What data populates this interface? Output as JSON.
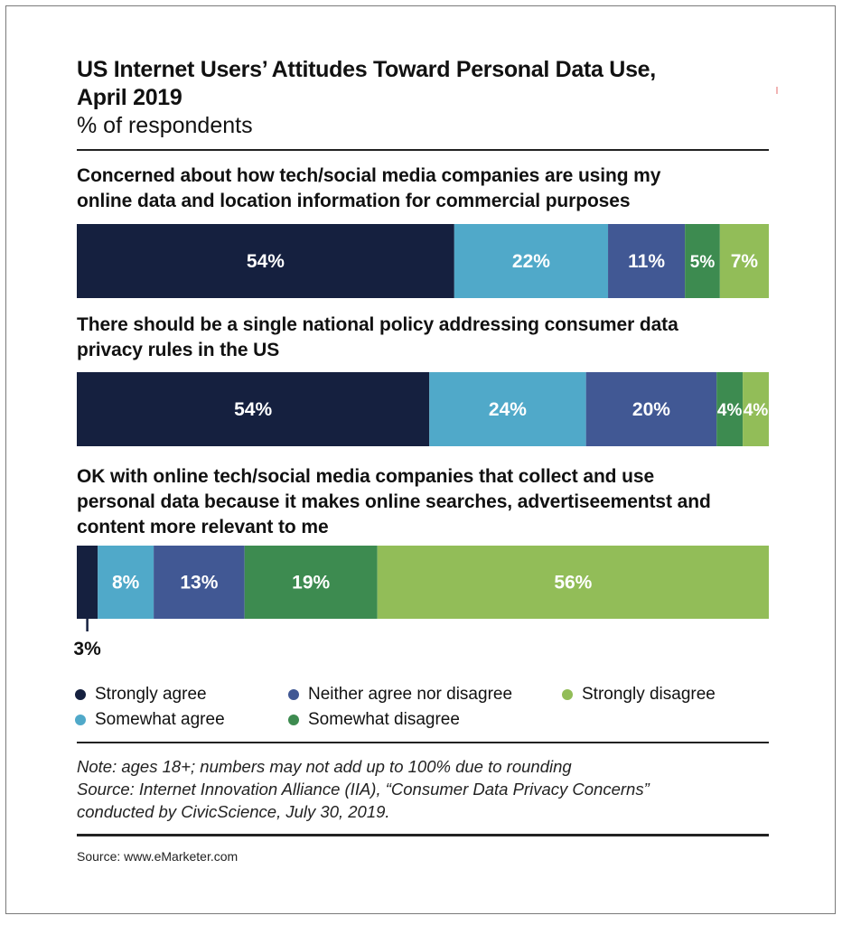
{
  "chart_data": {
    "type": "bar",
    "orientation": "horizontal-stacked",
    "title": "US Internet Users’ Attitudes Toward Personal Data Use, April 2019",
    "title_line1": "US Internet Users’ Attitudes Toward Personal Data Use,",
    "title_line2": "April 2019",
    "subtitle": "% of respondents",
    "xlabel": "",
    "ylabel": "",
    "grid": false,
    "legend_position": "bottom",
    "unit": "%",
    "series": [
      {
        "name": "Strongly agree",
        "color": "#15203f"
      },
      {
        "name": "Somewhat agree",
        "color": "#50a9c9"
      },
      {
        "name": "Neither agree nor disagree",
        "color": "#415894"
      },
      {
        "name": "Somewhat disagree",
        "color": "#3d8b50"
      },
      {
        "name": "Strongly disagree",
        "color": "#92bd58"
      }
    ],
    "categories": [
      {
        "label": "Concerned about how tech/social media companies are using my online data and location information for commercial purposes",
        "label_lines": [
          "Concerned about how tech/social media companies are using my",
          "online data and location information for commercial purposes"
        ],
        "values": [
          54,
          22,
          11,
          5,
          7
        ],
        "value_labels": [
          "54%",
          "22%",
          "11%",
          "5%",
          "7%"
        ]
      },
      {
        "label": "There should be a single national policy addressing consumer data privacy rules in the US",
        "label_lines": [
          "There should be a single national policy addressing consumer data",
          "privacy rules in the US"
        ],
        "values": [
          54,
          24,
          20,
          4,
          4
        ],
        "value_labels": [
          "54%",
          "24%",
          "20%",
          "4%",
          "4%"
        ]
      },
      {
        "label": "OK with online tech/social media companies that collect and use personal data because it makes online searches, advertiseementst and content more relevant to me",
        "label_lines": [
          "OK with online tech/social media companies that collect and use",
          "personal data because it makes online searches, advertiseementst and",
          "content more relevant to me"
        ],
        "values": [
          3,
          8,
          13,
          19,
          56
        ],
        "value_labels": [
          "3%",
          "8%",
          "13%",
          "19%",
          "56%"
        ],
        "callout_index": 0
      }
    ]
  },
  "legend": {
    "items": [
      {
        "label": "Strongly agree",
        "color": "#15203f"
      },
      {
        "label": "Somewhat agree",
        "color": "#50a9c9"
      },
      {
        "label": "Neither agree nor disagree",
        "color": "#415894"
      },
      {
        "label": "Somewhat disagree",
        "color": "#3d8b50"
      },
      {
        "label": "Strongly disagree",
        "color": "#92bd58"
      }
    ]
  },
  "footer": {
    "note_line1": "Note: ages 18+; numbers may not add up to 100% due to rounding",
    "note_line2": "Source: Internet Innovation Alliance (IIA), “Consumer Data Privacy Concerns”",
    "note_line3": "conducted by CivicScience, July 30, 2019.",
    "source": "Source: www.eMarketer.com"
  }
}
